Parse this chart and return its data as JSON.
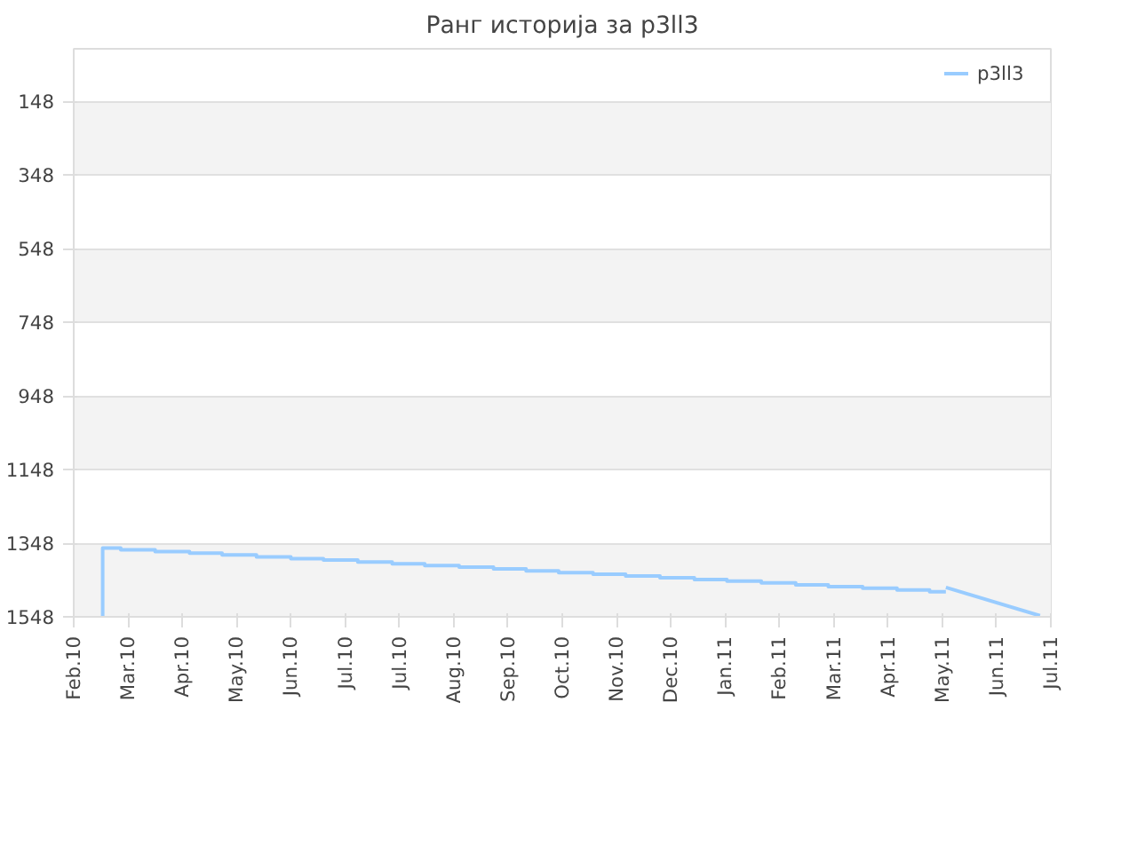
{
  "chart_data": {
    "type": "step",
    "title": "Ранг историја за p3ll3",
    "x": [
      "2010-02-17",
      "2010-02-17",
      "2010-02-27",
      "2010-03-18",
      "2010-04-06",
      "2010-04-24",
      "2010-05-13",
      "2010-06-01",
      "2010-06-19",
      "2010-07-08",
      "2010-07-27",
      "2010-08-14",
      "2010-09-02",
      "2010-09-21",
      "2010-10-09",
      "2010-10-27",
      "2010-11-15",
      "2010-12-03",
      "2010-12-22",
      "2011-01-10",
      "2011-01-28",
      "2011-02-16",
      "2011-03-07",
      "2011-03-25",
      "2011-04-13",
      "2011-05-02",
      "2011-05-20",
      "2011-05-29"
    ],
    "series": [
      {
        "name": "p3ll3",
        "color": "#99ccff",
        "values": [
          1548,
          1361,
          1366,
          1371,
          1375,
          1380,
          1385,
          1390,
          1394,
          1399,
          1404,
          1409,
          1413,
          1418,
          1423,
          1428,
          1432,
          1437,
          1442,
          1447,
          1451,
          1456,
          1461,
          1466,
          1470,
          1475,
          1480,
          1480
        ]
      },
      {
        "type": "line",
        "color": "#99ccff",
        "x": [
          "2011-05-29",
          "2011-07-20"
        ],
        "values": [
          1468,
          1545
        ]
      }
    ],
    "xlim": [
      "2010-02-01",
      "2011-07-26"
    ],
    "xticks": [
      {
        "value": "2010-02-01",
        "label": "Feb.10"
      },
      {
        "value": "2010-03-03",
        "label": "Mar.10"
      },
      {
        "value": "2010-04-02",
        "label": "Apr.10"
      },
      {
        "value": "2010-05-02",
        "label": "May.10"
      },
      {
        "value": "2010-06-01",
        "label": "Jun.10"
      },
      {
        "value": "2010-07-01",
        "label": "Jul.10"
      },
      {
        "value": "2010-07-31",
        "label": "Jul.10"
      },
      {
        "value": "2010-08-30",
        "label": "Aug.10"
      },
      {
        "value": "2010-09-29",
        "label": "Sep.10"
      },
      {
        "value": "2010-10-29",
        "label": "Oct.10"
      },
      {
        "value": "2010-11-28",
        "label": "Nov.10"
      },
      {
        "value": "2010-12-28",
        "label": "Dec.10"
      },
      {
        "value": "2011-01-27",
        "label": "Jan.11"
      },
      {
        "value": "2011-02-26",
        "label": "Feb.11"
      },
      {
        "value": "2011-03-28",
        "label": "Mar.11"
      },
      {
        "value": "2011-04-27",
        "label": "Apr.11"
      },
      {
        "value": "2011-05-27",
        "label": "May.11"
      },
      {
        "value": "2011-06-26",
        "label": "Jun.11"
      },
      {
        "value": "2011-07-26",
        "label": "Jul.11"
      }
    ],
    "ylim": [
      1548,
      5
    ],
    "yticks": [
      148,
      348,
      548,
      748,
      948,
      1148,
      1348,
      1548
    ],
    "grid": "y",
    "legend": "top right",
    "marker": "none",
    "line_style": "solid"
  }
}
